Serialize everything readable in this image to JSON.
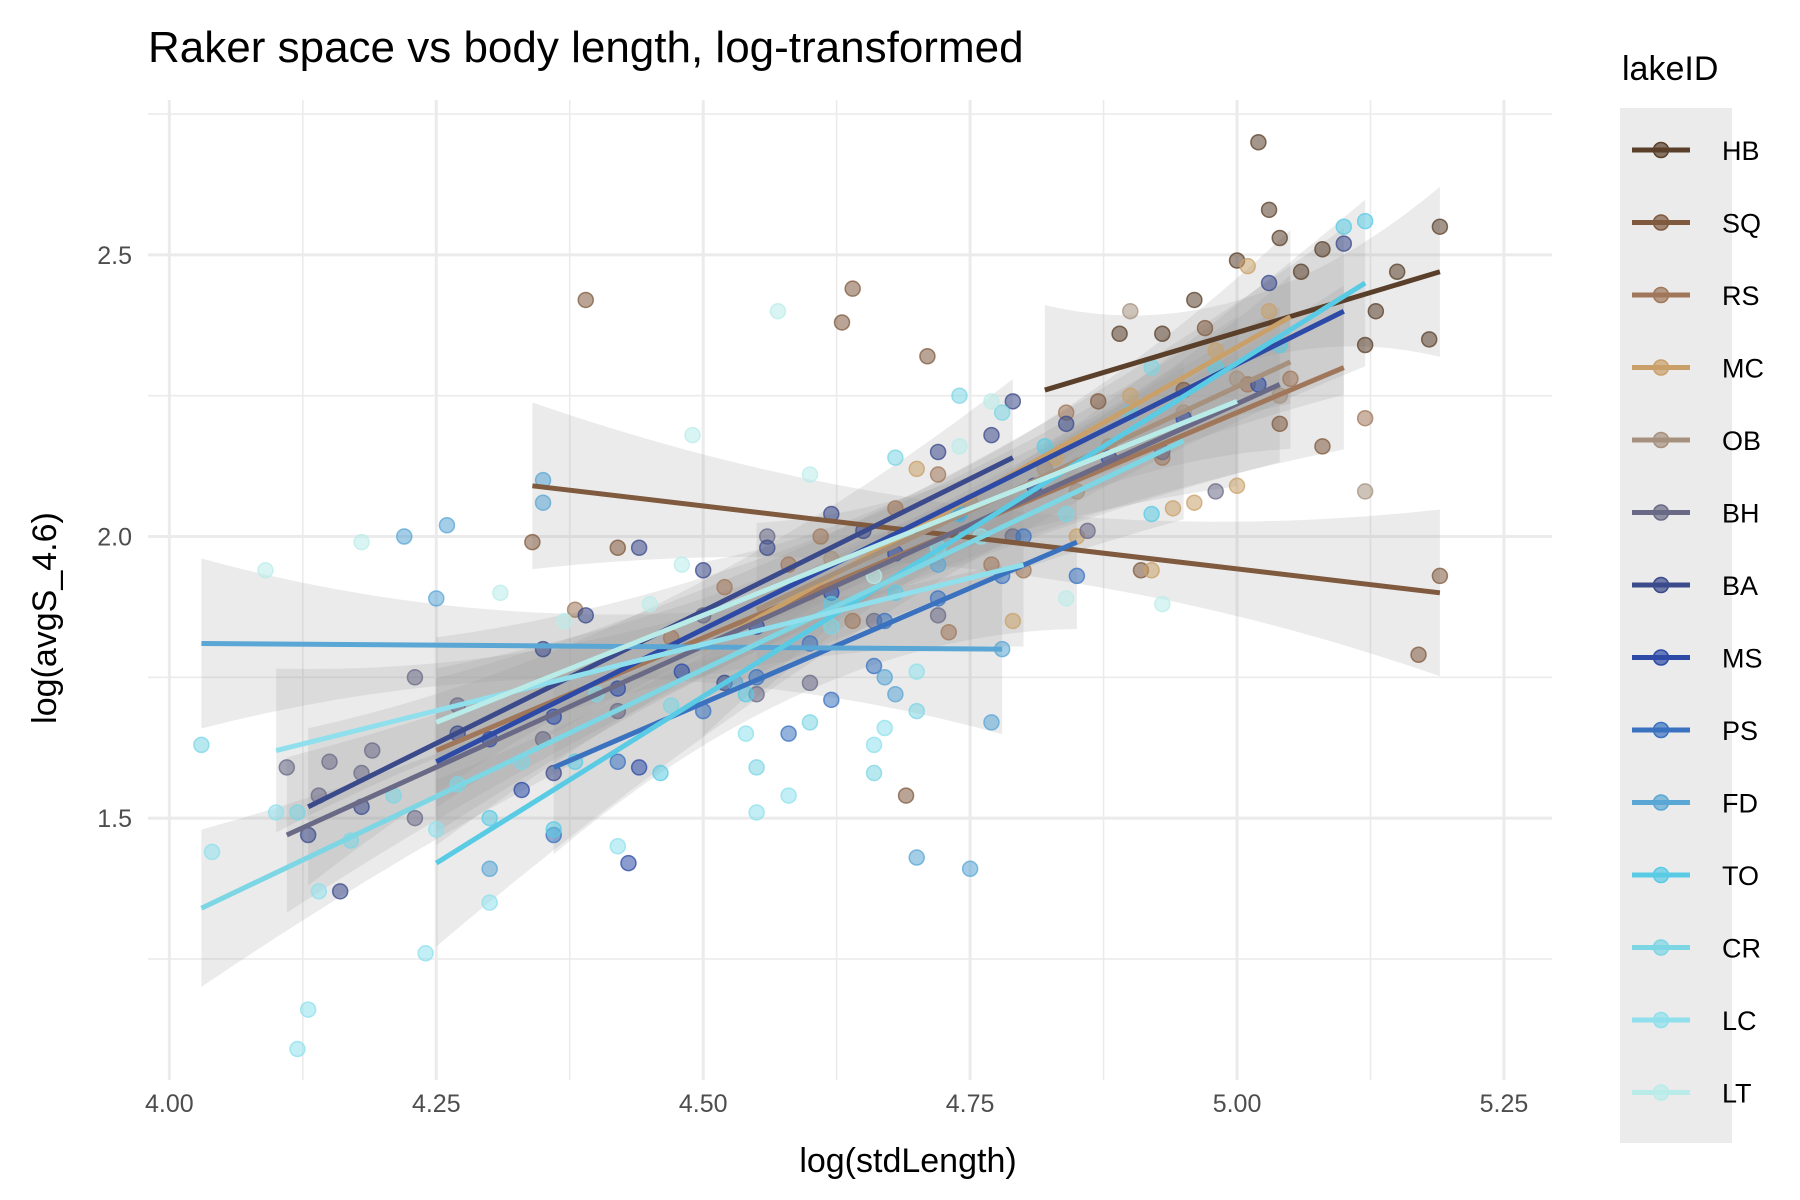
{
  "chart_data": {
    "type": "scatter",
    "title": "Raker space vs body length, log-transformed",
    "xlabel": "log(stdLength)",
    "ylabel": "log(avgS_4.6)",
    "xlim": [
      3.98,
      5.295
    ],
    "ylim": [
      1.035,
      2.775
    ],
    "x_ticks": [
      4.0,
      4.25,
      4.5,
      4.75,
      5.0,
      5.25
    ],
    "x_tick_labels": [
      "4.00",
      "4.25",
      "4.50",
      "4.75",
      "5.00",
      "5.25"
    ],
    "y_ticks": [
      1.5,
      2.0,
      2.5
    ],
    "y_tick_labels": [
      "1.5",
      "2.0",
      "2.5"
    ],
    "grid": true,
    "legend": {
      "title": "lakeID",
      "placement": "right"
    },
    "series": [
      {
        "name": "HB",
        "color": "#5a3f2a",
        "fit": [
          [
            4.82,
            2.26
          ],
          [
            5.19,
            2.47
          ]
        ],
        "points": [
          [
            5.02,
            2.7
          ],
          [
            5.03,
            2.58
          ],
          [
            5.04,
            2.53
          ],
          [
            5.08,
            2.51
          ],
          [
            5.13,
            2.4
          ],
          [
            5.19,
            2.55
          ],
          [
            5.15,
            2.47
          ],
          [
            4.96,
            2.42
          ],
          [
            4.89,
            2.36
          ],
          [
            5.06,
            2.47
          ],
          [
            4.93,
            2.36
          ],
          [
            5.0,
            2.49
          ],
          [
            5.12,
            2.34
          ],
          [
            5.18,
            2.35
          ]
        ]
      },
      {
        "name": "SQ",
        "color": "#7f5a3e",
        "fit": [
          [
            4.34,
            2.09
          ],
          [
            5.19,
            1.9
          ]
        ],
        "points": [
          [
            4.39,
            2.42
          ],
          [
            4.64,
            2.44
          ],
          [
            4.63,
            2.38
          ],
          [
            4.34,
            1.99
          ],
          [
            4.42,
            1.98
          ],
          [
            4.71,
            2.32
          ],
          [
            4.69,
            1.54
          ],
          [
            4.91,
            1.94
          ],
          [
            5.19,
            1.93
          ],
          [
            5.17,
            1.79
          ],
          [
            5.08,
            2.16
          ],
          [
            4.97,
            2.37
          ],
          [
            5.04,
            2.2
          ],
          [
            4.87,
            2.24
          ],
          [
            4.95,
            2.26
          ]
        ]
      },
      {
        "name": "RS",
        "color": "#a0775a",
        "fit": [
          [
            4.25,
            1.62
          ],
          [
            5.1,
            2.3
          ]
        ],
        "points": [
          [
            4.38,
            1.87
          ],
          [
            4.47,
            1.82
          ],
          [
            4.52,
            1.91
          ],
          [
            4.58,
            1.95
          ],
          [
            4.61,
            2.0
          ],
          [
            4.68,
            2.05
          ],
          [
            4.72,
            2.11
          ],
          [
            4.77,
            1.95
          ],
          [
            4.84,
            2.22
          ],
          [
            4.93,
            2.14
          ],
          [
            5.01,
            2.27
          ],
          [
            5.05,
            2.28
          ],
          [
            5.12,
            2.21
          ],
          [
            4.73,
            1.83
          ],
          [
            4.8,
            1.94
          ],
          [
            4.64,
            1.85
          ]
        ]
      },
      {
        "name": "MC",
        "color": "#c9a06a",
        "fit": [
          [
            4.5,
            1.8
          ],
          [
            5.05,
            2.39
          ]
        ],
        "points": [
          [
            4.7,
            2.12
          ],
          [
            4.79,
            1.85
          ],
          [
            4.85,
            2.0
          ],
          [
            4.9,
            2.25
          ],
          [
            4.94,
            2.05
          ],
          [
            5.01,
            2.48
          ],
          [
            5.03,
            2.4
          ],
          [
            4.98,
            2.33
          ],
          [
            4.88,
            2.15
          ],
          [
            4.92,
            1.94
          ],
          [
            4.83,
            2.14
          ],
          [
            4.96,
            2.06
          ],
          [
            5.0,
            2.09
          ]
        ]
      },
      {
        "name": "OB",
        "color": "#a6917f",
        "fit": [
          [
            4.55,
            1.87
          ],
          [
            5.05,
            2.31
          ]
        ],
        "points": [
          [
            4.62,
            1.96
          ],
          [
            4.68,
            2.0
          ],
          [
            4.75,
            2.06
          ],
          [
            4.82,
            2.12
          ],
          [
            4.88,
            2.16
          ],
          [
            4.95,
            2.22
          ],
          [
            5.0,
            2.28
          ],
          [
            5.04,
            2.25
          ],
          [
            4.72,
            2.03
          ],
          [
            4.85,
            2.08
          ],
          [
            4.9,
            2.4
          ],
          [
            5.12,
            2.08
          ],
          [
            4.6,
            1.9
          ]
        ]
      },
      {
        "name": "BH",
        "color": "#6a6a86",
        "fit": [
          [
            4.11,
            1.47
          ],
          [
            5.04,
            2.27
          ]
        ],
        "points": [
          [
            4.11,
            1.59
          ],
          [
            4.15,
            1.6
          ],
          [
            4.18,
            1.58
          ],
          [
            4.23,
            1.75
          ],
          [
            4.27,
            1.7
          ],
          [
            4.35,
            1.64
          ],
          [
            4.42,
            1.69
          ],
          [
            4.5,
            1.86
          ],
          [
            4.56,
            2.0
          ],
          [
            4.6,
            1.74
          ],
          [
            4.66,
            1.85
          ],
          [
            4.72,
            1.86
          ],
          [
            4.79,
            2.0
          ],
          [
            4.86,
            2.01
          ],
          [
            4.93,
            2.15
          ],
          [
            4.23,
            1.5
          ],
          [
            4.14,
            1.54
          ],
          [
            4.19,
            1.62
          ],
          [
            4.55,
            1.72
          ],
          [
            4.98,
            2.08
          ]
        ]
      },
      {
        "name": "BA",
        "color": "#3b4a8a",
        "fit": [
          [
            4.13,
            1.52
          ],
          [
            4.79,
            2.14
          ]
        ],
        "points": [
          [
            4.13,
            1.47
          ],
          [
            4.16,
            1.37
          ],
          [
            4.27,
            1.65
          ],
          [
            4.35,
            1.8
          ],
          [
            4.39,
            1.86
          ],
          [
            4.44,
            1.98
          ],
          [
            4.5,
            1.94
          ],
          [
            4.56,
            1.98
          ],
          [
            4.62,
            2.04
          ],
          [
            4.65,
            2.01
          ],
          [
            4.72,
            2.15
          ],
          [
            4.79,
            2.24
          ],
          [
            4.77,
            2.18
          ],
          [
            4.84,
            2.2
          ],
          [
            4.36,
            1.58
          ],
          [
            4.52,
            1.74
          ],
          [
            4.18,
            1.52
          ],
          [
            5.03,
            2.45
          ],
          [
            5.1,
            2.52
          ]
        ]
      },
      {
        "name": "MS",
        "color": "#2c4aa6",
        "fit": [
          [
            4.25,
            1.6
          ],
          [
            5.1,
            2.4
          ]
        ],
        "points": [
          [
            4.3,
            1.64
          ],
          [
            4.36,
            1.68
          ],
          [
            4.42,
            1.73
          ],
          [
            4.48,
            1.76
          ],
          [
            4.55,
            1.84
          ],
          [
            4.62,
            1.9
          ],
          [
            4.68,
            1.97
          ],
          [
            4.74,
            2.04
          ],
          [
            4.81,
            2.09
          ],
          [
            4.88,
            2.14
          ],
          [
            4.95,
            2.21
          ],
          [
            5.02,
            2.27
          ],
          [
            4.43,
            1.42
          ],
          [
            4.44,
            1.59
          ],
          [
            4.33,
            1.55
          ]
        ]
      },
      {
        "name": "PS",
        "color": "#3a72c0",
        "fit": [
          [
            4.36,
            1.59
          ],
          [
            4.85,
            1.99
          ]
        ],
        "points": [
          [
            4.36,
            1.47
          ],
          [
            4.42,
            1.6
          ],
          [
            4.5,
            1.69
          ],
          [
            4.55,
            1.75
          ],
          [
            4.6,
            1.81
          ],
          [
            4.67,
            1.85
          ],
          [
            4.72,
            1.89
          ],
          [
            4.78,
            1.93
          ],
          [
            4.85,
            1.93
          ],
          [
            4.58,
            1.65
          ],
          [
            4.66,
            1.77
          ],
          [
            4.8,
            2.0
          ],
          [
            4.62,
            1.71
          ]
        ]
      },
      {
        "name": "FD",
        "color": "#5aa6d4",
        "fit": [
          [
            4.03,
            1.81
          ],
          [
            4.78,
            1.8
          ]
        ],
        "points": [
          [
            4.22,
            2.0
          ],
          [
            4.25,
            1.89
          ],
          [
            4.26,
            2.02
          ],
          [
            4.35,
            2.1
          ],
          [
            4.35,
            2.06
          ],
          [
            4.67,
            1.75
          ],
          [
            4.68,
            1.72
          ],
          [
            4.7,
            1.43
          ],
          [
            4.75,
            1.41
          ],
          [
            4.77,
            1.67
          ],
          [
            4.78,
            1.8
          ],
          [
            4.53,
            1.74
          ],
          [
            4.3,
            1.41
          ],
          [
            4.72,
            1.95
          ]
        ]
      },
      {
        "name": "TO",
        "color": "#5acbe4",
        "fit": [
          [
            4.25,
            1.42
          ],
          [
            5.12,
            2.45
          ]
        ],
        "points": [
          [
            4.3,
            1.5
          ],
          [
            4.38,
            1.6
          ],
          [
            4.46,
            1.58
          ],
          [
            4.54,
            1.72
          ],
          [
            4.62,
            1.88
          ],
          [
            4.68,
            1.9
          ],
          [
            4.74,
            2.04
          ],
          [
            4.82,
            2.16
          ],
          [
            4.9,
            2.22
          ],
          [
            4.98,
            2.3
          ],
          [
            5.04,
            2.34
          ],
          [
            5.1,
            2.55
          ],
          [
            5.12,
            2.56
          ],
          [
            4.92,
            2.04
          ],
          [
            4.36,
            1.48
          ]
        ]
      },
      {
        "name": "CR",
        "color": "#7cd6e4",
        "fit": [
          [
            4.03,
            1.34
          ],
          [
            4.95,
            2.17
          ]
        ],
        "points": [
          [
            4.03,
            1.63
          ],
          [
            4.12,
            1.51
          ],
          [
            4.17,
            1.46
          ],
          [
            4.21,
            1.54
          ],
          [
            4.27,
            1.56
          ],
          [
            4.33,
            1.6
          ],
          [
            4.4,
            1.72
          ],
          [
            4.47,
            1.7
          ],
          [
            4.55,
            1.59
          ],
          [
            4.62,
            1.84
          ],
          [
            4.68,
            2.14
          ],
          [
            4.72,
            1.98
          ],
          [
            4.78,
            2.22
          ],
          [
            4.84,
            2.04
          ],
          [
            4.92,
            2.3
          ],
          [
            4.66,
            1.58
          ],
          [
            4.7,
            1.69
          ],
          [
            4.6,
            1.67
          ],
          [
            4.74,
            2.25
          ]
        ]
      },
      {
        "name": "LC",
        "color": "#8fe0ec",
        "fit": [
          [
            4.1,
            1.62
          ],
          [
            4.8,
            1.95
          ]
        ],
        "points": [
          [
            4.04,
            1.44
          ],
          [
            4.12,
            1.09
          ],
          [
            4.13,
            1.16
          ],
          [
            4.14,
            1.37
          ],
          [
            4.24,
            1.26
          ],
          [
            4.25,
            1.48
          ],
          [
            4.3,
            1.35
          ],
          [
            4.42,
            1.45
          ],
          [
            4.54,
            1.65
          ],
          [
            4.58,
            1.54
          ],
          [
            4.66,
            1.63
          ],
          [
            4.7,
            1.76
          ],
          [
            4.76,
            2.0
          ],
          [
            4.1,
            1.51
          ],
          [
            4.67,
            1.66
          ],
          [
            4.55,
            1.51
          ]
        ]
      },
      {
        "name": "LT",
        "color": "#b9ece9",
        "fit": [
          [
            4.25,
            1.67
          ],
          [
            5.0,
            2.24
          ]
        ],
        "points": [
          [
            4.09,
            1.94
          ],
          [
            4.18,
            1.99
          ],
          [
            4.31,
            1.9
          ],
          [
            4.49,
            2.18
          ],
          [
            4.57,
            2.4
          ],
          [
            4.6,
            2.11
          ],
          [
            4.45,
            1.88
          ],
          [
            4.48,
            1.95
          ],
          [
            4.37,
            1.85
          ],
          [
            4.74,
            2.16
          ],
          [
            4.84,
            1.89
          ],
          [
            4.93,
            1.88
          ],
          [
            4.77,
            2.24
          ],
          [
            4.66,
            1.93
          ]
        ]
      }
    ]
  }
}
